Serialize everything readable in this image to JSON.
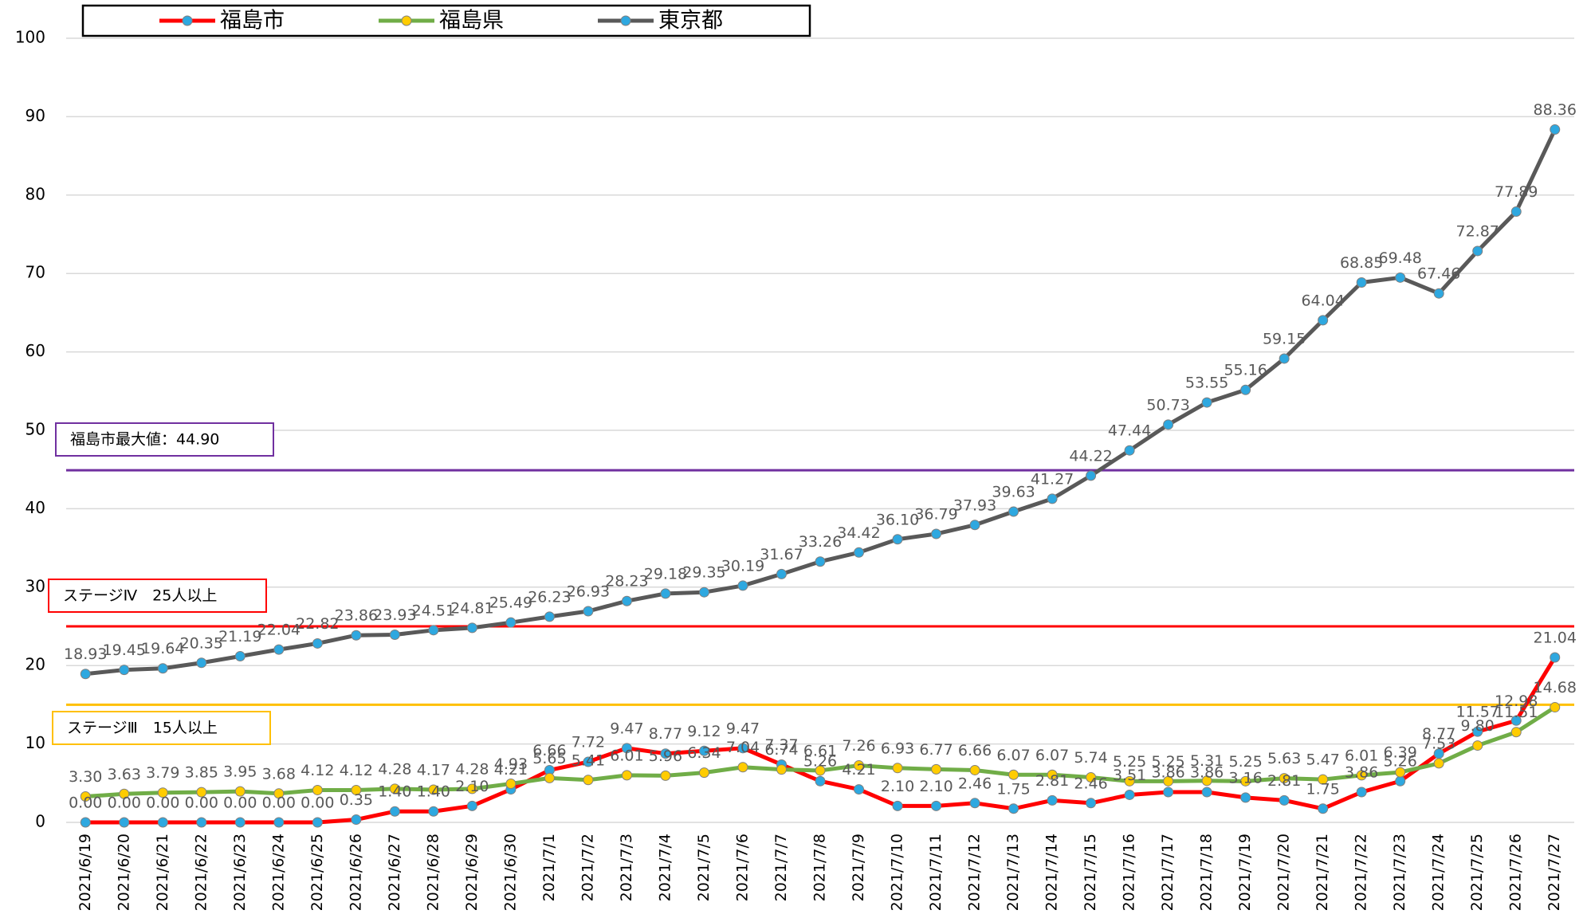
{
  "chart_data": {
    "type": "line",
    "categories": [
      "2021/6/19",
      "2021/6/20",
      "2021/6/21",
      "2021/6/22",
      "2021/6/23",
      "2021/6/24",
      "2021/6/25",
      "2021/6/26",
      "2021/6/27",
      "2021/6/28",
      "2021/6/29",
      "2021/6/30",
      "2021/7/1",
      "2021/7/2",
      "2021/7/3",
      "2021/7/4",
      "2021/7/5",
      "2021/7/6",
      "2021/7/7",
      "2021/7/8",
      "2021/7/9",
      "2021/7/10",
      "2021/7/11",
      "2021/7/12",
      "2021/7/13",
      "2021/7/14",
      "2021/7/15",
      "2021/7/16",
      "2021/7/17",
      "2021/7/18",
      "2021/7/19",
      "2021/7/20",
      "2021/7/21",
      "2021/7/22",
      "2021/7/23",
      "2021/7/24",
      "2021/7/25",
      "2021/7/26",
      "2021/7/27"
    ],
    "series": [
      {
        "name": "福島市",
        "color": "#ff0000",
        "marker_color": "#2ea8e0",
        "values": [
          0,
          0,
          0,
          0,
          0,
          0,
          0,
          0.35,
          1.4,
          1.4,
          2.1,
          4.21,
          6.66,
          7.72,
          9.47,
          8.77,
          9.12,
          9.47,
          7.37,
          5.26,
          4.21,
          2.1,
          2.1,
          2.46,
          1.75,
          2.81,
          2.46,
          3.51,
          3.86,
          3.86,
          3.16,
          2.81,
          1.75,
          3.86,
          5.26,
          8.77,
          11.57,
          12.98,
          21.04
        ],
        "value_labels": [
          "0.00",
          "0.00",
          "0.00",
          "0.00",
          "0.00",
          "0.00",
          "0.00",
          "0.35",
          "1.40",
          "1.40",
          "2.10",
          "4.21",
          "6.66",
          "7.72",
          "9.47",
          "8.77",
          "9.12",
          "9.47",
          "7.37",
          "5.26",
          "4.21",
          "2.10",
          "2.10",
          "2.46",
          "1.75",
          "2.81",
          "2.46",
          "3.51",
          "3.86",
          "3.86",
          "3.16",
          "2.81",
          "1.75",
          "3.86",
          "5.26",
          "8.77",
          "11.57",
          "12.98",
          "21.04"
        ]
      },
      {
        "name": "福島県",
        "color": "#70ad47",
        "marker_color": "#ffcc00",
        "values": [
          3.3,
          3.63,
          3.79,
          3.85,
          3.95,
          3.68,
          4.12,
          4.12,
          4.28,
          4.17,
          4.28,
          4.93,
          5.65,
          5.41,
          6.01,
          5.96,
          6.34,
          7.04,
          6.74,
          6.61,
          7.26,
          6.93,
          6.77,
          6.66,
          6.07,
          6.07,
          5.74,
          5.25,
          5.25,
          5.31,
          5.25,
          5.63,
          5.47,
          6.01,
          6.39,
          7.53,
          9.8,
          11.51,
          14.68
        ],
        "value_labels": [
          "3.30",
          "3.63",
          "3.79",
          "3.85",
          "3.95",
          "3.68",
          "4.12",
          "4.12",
          "4.28",
          "4.17",
          "4.28",
          "4.93",
          "5.65",
          "5.41",
          "6.01",
          "5.96",
          "6.34",
          "7.04",
          "6.74",
          "6.61",
          "7.26",
          "6.93",
          "6.77",
          "6.66",
          "6.07",
          "6.07",
          "5.74",
          "5.25",
          "5.25",
          "5.31",
          "5.25",
          "5.63",
          "5.47",
          "6.01",
          "6.39",
          "7.53",
          "9.80",
          "11.51",
          "14.68"
        ]
      },
      {
        "name": "東京都",
        "color": "#595959",
        "marker_color": "#2ea8e0",
        "values": [
          18.93,
          19.45,
          19.64,
          20.35,
          21.19,
          22.04,
          22.82,
          23.86,
          23.93,
          24.51,
          24.81,
          25.49,
          26.23,
          26.93,
          28.23,
          29.18,
          29.35,
          30.19,
          31.67,
          33.26,
          34.42,
          36.1,
          36.79,
          37.93,
          39.63,
          41.27,
          44.22,
          47.44,
          50.73,
          53.55,
          55.16,
          59.15,
          64.04,
          68.85,
          69.48,
          67.46,
          72.87,
          77.89,
          88.36
        ],
        "value_labels": [
          "18.93",
          "19.45",
          "19.64",
          "20.35",
          "21.19",
          "22.04",
          "22.82",
          "23.86",
          "23.93",
          "24.51",
          "24.81",
          "25.49",
          "26.23",
          "26.93",
          "28.23",
          "29.18",
          "29.35",
          "30.19",
          "31.67",
          "33.26",
          "34.42",
          "36.10",
          "36.79",
          "37.93",
          "39.63",
          "41.27",
          "44.22",
          "47.44",
          "50.73",
          "53.55",
          "55.16",
          "59.15",
          "64.04",
          "68.85",
          "69.48",
          "67.46",
          "72.87",
          "77.89",
          "88.36"
        ]
      }
    ],
    "reference_lines": [
      {
        "label": "福島市最大値：44.90",
        "value": 44.9,
        "color": "#7030a0"
      },
      {
        "label": "ステージⅣ　25人以上",
        "value": 25,
        "color": "#ff0000"
      },
      {
        "label": "ステージⅢ　15人以上",
        "value": 15,
        "color": "#ffc000"
      }
    ],
    "ylim": [
      0,
      100
    ],
    "yticks": [
      0,
      10,
      20,
      30,
      40,
      50,
      60,
      70,
      80,
      90,
      100
    ],
    "grid": true,
    "legend": "top"
  }
}
